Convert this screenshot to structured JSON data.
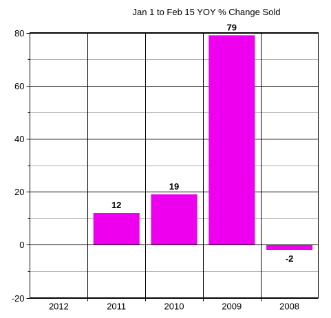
{
  "chart_data": {
    "type": "bar",
    "title": "Jan 1 to Feb 15 YOY % Change Sold",
    "xlabel": "",
    "ylabel": "",
    "categories": [
      "2012",
      "2011",
      "2010",
      "2009",
      "2008"
    ],
    "values": [
      null,
      12,
      19,
      79,
      -2
    ],
    "data_labels": [
      "",
      "12",
      "19",
      "79",
      "-2"
    ],
    "ylim": [
      -20,
      80
    ],
    "y_ticks": [
      -20,
      0,
      20,
      40,
      60,
      80
    ],
    "y_tick_labels": [
      "-20",
      "0",
      "20",
      "40",
      "60",
      "80"
    ],
    "minor_y_ticks": [
      -10,
      10,
      30,
      50,
      70
    ],
    "grid": true,
    "legend": "none",
    "bar_color": "#ee00ee",
    "grid_color": "#000000",
    "minor_grid_color": "#aaaaaa"
  }
}
